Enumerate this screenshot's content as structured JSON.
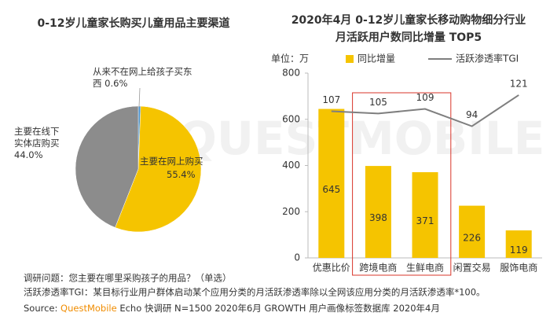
{
  "chart_data": [
    {
      "type": "pie",
      "title": "0-12岁儿童家长购买儿童用品主要渠道",
      "categories": [
        "从来不在网上给孩子买东西",
        "主要在网上购买",
        "主要在线下实体店购买"
      ],
      "values": [
        0.6,
        55.4,
        44.0
      ],
      "value_labels": [
        "0.6%",
        "55.4%",
        "44.0%"
      ],
      "colors": [
        "#4a90c8",
        "#f5c400",
        "#8c8c8c"
      ]
    },
    {
      "type": "bar-line",
      "title": [
        "2020年4月 0-12岁儿童家长移动购物细分行业",
        "月活跃用户数同比增量 TOP5"
      ],
      "unit": "单位：万",
      "categories": [
        "优惠比价",
        "跨境电商",
        "生鲜电商",
        "闲置交易",
        "服饰电商"
      ],
      "series": [
        {
          "name": "同比增量",
          "type": "bar",
          "color": "#f5c400",
          "values": [
            645,
            398,
            371,
            226,
            119
          ]
        },
        {
          "name": "活跃渗透率TGI",
          "type": "line",
          "axis": "y2",
          "color": "#7f7f7f",
          "values": [
            107,
            105,
            109,
            94,
            121
          ]
        }
      ],
      "ylim": [
        0,
        800
      ],
      "yticks": [
        0,
        200,
        400,
        600,
        800
      ],
      "y2lim": [
        -20,
        140
      ],
      "highlight": [
        1,
        2
      ]
    }
  ],
  "notes": [
    "调研问题：您主要在哪里采购孩子的用品？（单选）",
    "活跃渗透率TGI：某目标行业用户群体启动某个应用分类的月活跃渗透率除以全网该应用分类的月活跃渗透率*100。"
  ],
  "source": {
    "label": "Source:",
    "brand": "QuestMobile",
    "text": "Echo 快调研 N=1500 2020年6月 GROWTH 用户画像标签数据库 2020年4月"
  },
  "watermark": "QUESTMOBILE"
}
